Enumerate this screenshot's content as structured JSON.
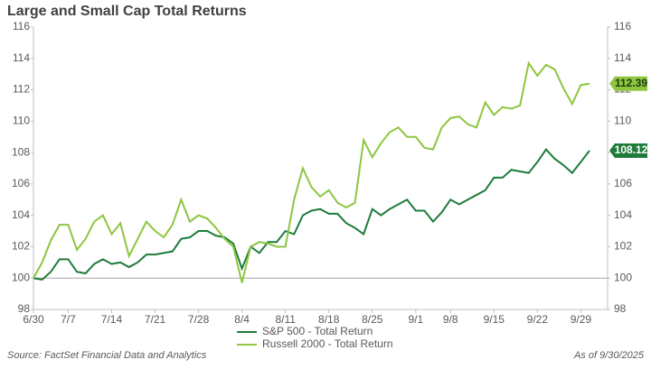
{
  "chart_data": {
    "type": "line",
    "title": "Large and Small Cap Total Returns",
    "source": "Source: FactSet Financial Data and Analytics",
    "as_of": "As of 9/30/2025",
    "categories": [
      "6/30",
      null,
      null,
      null,
      "7/7",
      null,
      null,
      null,
      null,
      "7/14",
      null,
      null,
      null,
      null,
      "7/21",
      null,
      null,
      null,
      null,
      "7/28",
      null,
      null,
      null,
      null,
      "8/4",
      null,
      null,
      null,
      null,
      "8/11",
      null,
      null,
      null,
      null,
      "8/18",
      null,
      null,
      null,
      null,
      "8/25",
      null,
      null,
      null,
      null,
      "9/1",
      null,
      null,
      null,
      "9/8",
      null,
      null,
      null,
      null,
      "9/15",
      null,
      null,
      null,
      null,
      "9/22",
      null,
      null,
      null,
      null,
      "9/29",
      null
    ],
    "series": [
      {
        "name": "S&P 500 - Total Return",
        "color": "#1e7b3a",
        "values": [
          100,
          99.9,
          100.4,
          101.2,
          101.2,
          100.4,
          100.3,
          100.9,
          101.2,
          100.9,
          101.0,
          100.7,
          101.0,
          101.5,
          101.5,
          101.6,
          101.7,
          102.5,
          102.6,
          103.0,
          103.0,
          102.7,
          102.6,
          102.2,
          100.6,
          102.0,
          101.6,
          102.3,
          102.3,
          103.0,
          102.8,
          104.0,
          104.3,
          104.4,
          104.1,
          104.1,
          103.5,
          103.2,
          102.8,
          104.4,
          104.0,
          104.4,
          104.7,
          105.0,
          104.3,
          104.3,
          103.6,
          104.2,
          105.0,
          104.7,
          105.0,
          105.3,
          105.6,
          106.4,
          106.4,
          106.9,
          106.8,
          106.7,
          107.4,
          108.2,
          107.6,
          107.2,
          106.7,
          107.4,
          108.12
        ]
      },
      {
        "name": "Russell 2000 - Total Return",
        "color": "#8dc63f",
        "values": [
          100,
          101.0,
          102.4,
          103.4,
          103.4,
          101.8,
          102.5,
          103.6,
          104.0,
          102.8,
          103.5,
          101.4,
          102.5,
          103.6,
          103.0,
          102.6,
          103.4,
          105.0,
          103.6,
          104.0,
          103.8,
          103.2,
          102.5,
          102.0,
          99.7,
          102.0,
          102.3,
          102.2,
          102.0,
          102.0,
          105.0,
          107.0,
          105.8,
          105.2,
          105.6,
          104.8,
          104.5,
          104.8,
          108.8,
          107.7,
          108.6,
          109.3,
          109.6,
          109.0,
          109.0,
          108.3,
          108.2,
          109.6,
          110.2,
          110.3,
          109.8,
          109.6,
          111.2,
          110.4,
          110.9,
          110.8,
          111.0,
          113.7,
          112.9,
          113.6,
          113.3,
          112.1,
          111.1,
          112.3,
          112.39
        ]
      }
    ],
    "ylim": [
      98,
      116
    ],
    "yticks": [
      98,
      100,
      102,
      104,
      106,
      108,
      110,
      112,
      114,
      116
    ],
    "y2lim": [
      98,
      116
    ],
    "y2ticks": [
      98,
      100,
      102,
      104,
      106,
      108,
      110,
      112,
      114,
      116
    ],
    "reference_line": 100
  }
}
